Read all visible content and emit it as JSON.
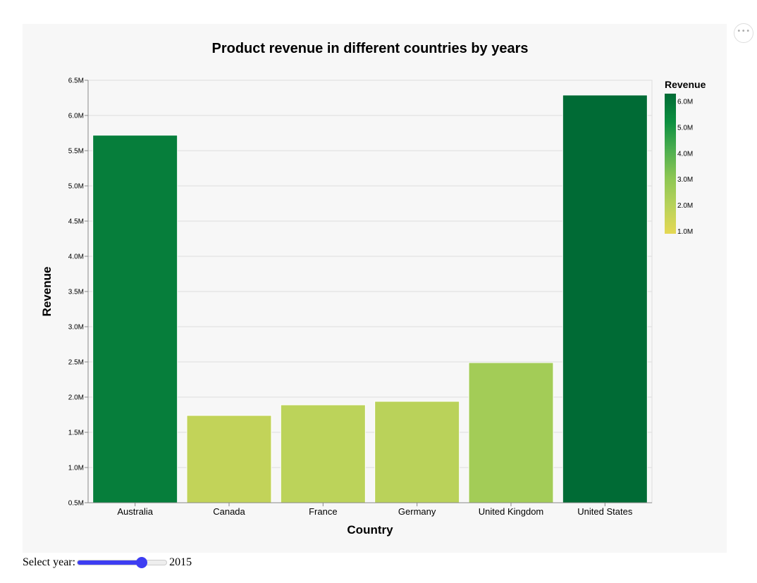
{
  "chart_data": {
    "type": "bar",
    "title": "Product revenue in different countries by years",
    "xlabel": "Country",
    "ylabel": "Revenue",
    "categories": [
      "Australia",
      "Canada",
      "France",
      "Germany",
      "United Kingdom",
      "United States"
    ],
    "values": [
      5720000,
      1740000,
      1890000,
      1940000,
      2490000,
      6290000
    ],
    "ylim": [
      500000,
      6500000
    ],
    "yticks": [
      {
        "value": 500000,
        "label": "0.5M"
      },
      {
        "value": 1000000,
        "label": "1.0M"
      },
      {
        "value": 1500000,
        "label": "1.5M"
      },
      {
        "value": 2000000,
        "label": "2.0M"
      },
      {
        "value": 2500000,
        "label": "2.5M"
      },
      {
        "value": 3000000,
        "label": "3.0M"
      },
      {
        "value": 3500000,
        "label": "3.5M"
      },
      {
        "value": 4000000,
        "label": "4.0M"
      },
      {
        "value": 4500000,
        "label": "4.5M"
      },
      {
        "value": 5000000,
        "label": "5.0M"
      },
      {
        "value": 5500000,
        "label": "5.5M"
      },
      {
        "value": 6000000,
        "label": "6.0M"
      },
      {
        "value": 6500000,
        "label": "6.5M"
      }
    ],
    "grid": true,
    "legend": {
      "title": "Revenue",
      "placement": "right",
      "domain": [
        900000,
        6300000
      ],
      "ticks": [
        {
          "value": 6000000,
          "label": "6.0M"
        },
        {
          "value": 5000000,
          "label": "5.0M"
        },
        {
          "value": 4000000,
          "label": "4.0M"
        },
        {
          "value": 3000000,
          "label": "3.0M"
        },
        {
          "value": 2000000,
          "label": "2.0M"
        },
        {
          "value": 1000000,
          "label": "1.0M"
        }
      ]
    },
    "color_scale": [
      "#e5d854",
      "#b8d25a",
      "#8cc653",
      "#4cae4f",
      "#0c8f40",
      "#006b35"
    ]
  },
  "controls": {
    "slider_label": "Select year:",
    "year_value": "2015",
    "slider_fill_fraction": 0.75
  },
  "menu": {
    "icon": "ellipsis-icon",
    "glyph": "•••"
  }
}
